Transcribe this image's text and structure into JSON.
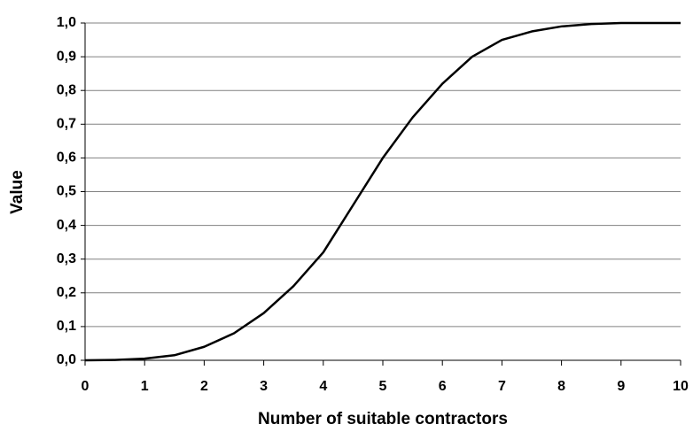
{
  "chart_data": {
    "type": "line",
    "x_label": "Number of suitable contractors",
    "y_label": "Value",
    "x": [
      0,
      0.5,
      1,
      1.5,
      2,
      2.5,
      3,
      3.5,
      4,
      4.5,
      5,
      5.5,
      6,
      6.5,
      7,
      7.5,
      8,
      8.5,
      9,
      9.5,
      10
    ],
    "series": [
      {
        "color": "#000000",
        "values": [
          0,
          0.001,
          0.005,
          0.015,
          0.04,
          0.08,
          0.14,
          0.22,
          0.32,
          0.46,
          0.6,
          0.72,
          0.82,
          0.9,
          0.95,
          0.975,
          0.99,
          0.997,
          1.0,
          1.0,
          1.0
        ]
      }
    ],
    "xlim": [
      0,
      10
    ],
    "xticks": [
      0,
      1,
      2,
      3,
      4,
      5,
      6,
      7,
      8,
      9,
      10
    ],
    "ylim": [
      0,
      1
    ],
    "yticks": [
      {
        "value": 0,
        "label": "0,0"
      },
      {
        "value": 0.1,
        "label": "0,1"
      },
      {
        "value": 0.2,
        "label": "0,2"
      },
      {
        "value": 0.3,
        "label": "0,3"
      },
      {
        "value": 0.4,
        "label": "0,4"
      },
      {
        "value": 0.5,
        "label": "0,5"
      },
      {
        "value": 0.6,
        "label": "0,6"
      },
      {
        "value": 0.7,
        "label": "0,7"
      },
      {
        "value": 0.8,
        "label": "0,8"
      },
      {
        "value": 0.9,
        "label": "0,9"
      },
      {
        "value": 1,
        "label": "1,0"
      }
    ],
    "grid": true
  }
}
